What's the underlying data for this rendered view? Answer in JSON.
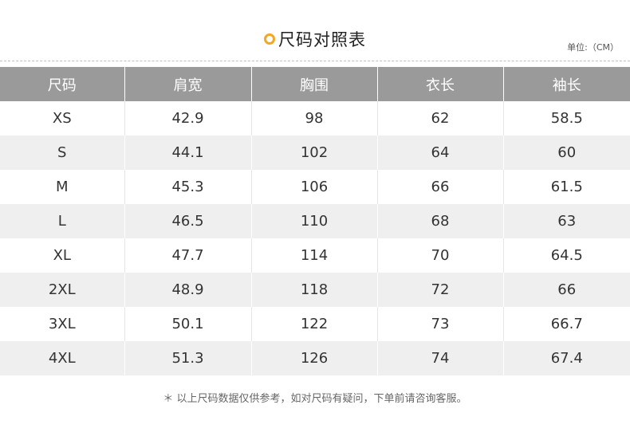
{
  "title": "尺码对照表",
  "unit": "单位:（CM）",
  "headers": [
    "尺码",
    "肩宽",
    "胸围",
    "衣长",
    "袖长"
  ],
  "rows": [
    [
      "XS",
      "42.9",
      "98",
      "62",
      "58.5"
    ],
    [
      "S",
      "44.1",
      "102",
      "64",
      "60"
    ],
    [
      "M",
      "45.3",
      "106",
      "66",
      "61.5"
    ],
    [
      "L",
      "46.5",
      "110",
      "68",
      "63"
    ],
    [
      "XL",
      "47.7",
      "114",
      "70",
      "64.5"
    ],
    [
      "2XL",
      "48.9",
      "118",
      "72",
      "66"
    ],
    [
      "3XL",
      "50.1",
      "122",
      "73",
      "66.7"
    ],
    [
      "4XL",
      "51.3",
      "126",
      "74",
      "67.4"
    ]
  ],
  "note": "＊ 以上尺码数据仅供参考，如对尺码有疑问，下单前请咨询客服。",
  "colors": {
    "accent": "#f5a623",
    "header_bg": "#9a9a9a",
    "row_alt": "#efefef"
  },
  "icons": {
    "title_marker": "circle-ring-icon"
  }
}
